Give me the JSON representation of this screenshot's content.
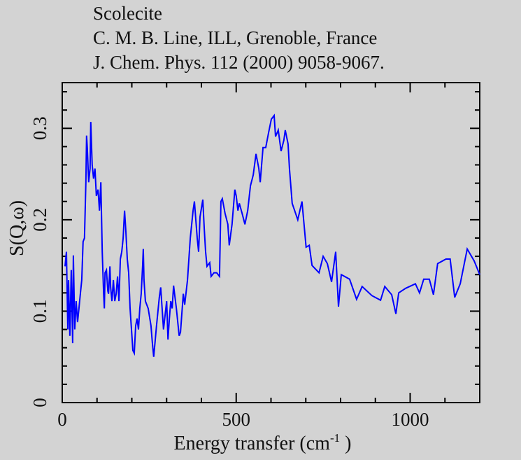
{
  "chart_data": {
    "type": "line",
    "title": [
      "Scolecite",
      "C. M. B. Line, ILL, Grenoble, France",
      "J. Chem. Phys. 112 (2000) 9058-9067."
    ],
    "xlabel": "Energy transfer (cm",
    "xlabel_sup": "-1",
    "xlabel_end": " )",
    "ylabel": "S(Q,ω)",
    "xlim": [
      0,
      1200
    ],
    "ylim": [
      0,
      0.35
    ],
    "xticks": [
      0,
      500,
      1000
    ],
    "xtick_labels": [
      "0",
      "500",
      "1000"
    ],
    "yticks": [
      0,
      0.1,
      0.2,
      0.3
    ],
    "ytick_labels": [
      "0",
      "0.1",
      "0.2",
      "0.3"
    ],
    "grid": false,
    "series": [
      {
        "name": "Scolecite",
        "color": "#0000ff",
        "x": [
          8,
          12,
          16,
          18,
          22,
          26,
          30,
          32,
          36,
          40,
          44,
          48,
          52,
          56,
          60,
          64,
          68,
          70,
          72,
          76,
          80,
          82,
          86,
          90,
          94,
          98,
          103,
          107,
          111,
          115,
          119,
          121,
          123,
          127,
          131,
          133,
          137,
          139,
          143,
          147,
          151,
          155,
          159,
          163,
          167,
          171,
          175,
          179,
          183,
          187,
          191,
          195,
          199,
          203,
          207,
          211,
          215,
          219,
          223,
          227,
          231,
          233,
          235,
          239,
          247,
          255,
          259,
          263,
          271,
          279,
          283,
          291,
          300,
          304,
          308,
          312,
          316,
          320,
          328,
          336,
          340,
          348,
          352,
          360,
          368,
          376,
          380,
          388,
          392,
          396,
          404,
          408,
          412,
          416,
          424,
          428,
          436,
          444,
          452,
          456,
          460,
          468,
          476,
          480,
          488,
          496,
          500,
          505,
          509,
          517,
          525,
          533,
          541,
          549,
          557,
          565,
          569,
          577,
          585,
          593,
          601,
          609,
          613,
          621,
          629,
          637,
          641,
          649,
          653,
          661,
          677,
          689,
          701,
          710,
          718,
          738,
          750,
          762,
          774,
          786,
          794,
          802,
          826,
          846,
          862,
          890,
          915,
          927,
          947,
          959,
          967,
          987,
          1015,
          1027,
          1039,
          1055,
          1067,
          1079,
          1103,
          1115,
          1128,
          1144,
          1164,
          1184,
          1200
        ],
        "y": [
          0.149,
          0.165,
          0.08,
          0.134,
          0.073,
          0.145,
          0.065,
          0.161,
          0.08,
          0.111,
          0.088,
          0.103,
          0.119,
          0.134,
          0.176,
          0.18,
          0.241,
          0.292,
          0.279,
          0.241,
          0.256,
          0.307,
          0.26,
          0.245,
          0.256,
          0.226,
          0.233,
          0.21,
          0.241,
          0.165,
          0.119,
          0.103,
          0.142,
          0.145,
          0.122,
          0.119,
          0.149,
          0.126,
          0.111,
          0.134,
          0.111,
          0.119,
          0.138,
          0.111,
          0.157,
          0.165,
          0.18,
          0.21,
          0.187,
          0.157,
          0.142,
          0.103,
          0.08,
          0.057,
          0.054,
          0.084,
          0.092,
          0.08,
          0.103,
          0.119,
          0.149,
          0.168,
          0.134,
          0.111,
          0.103,
          0.084,
          0.065,
          0.05,
          0.084,
          0.115,
          0.126,
          0.08,
          0.111,
          0.069,
          0.092,
          0.111,
          0.103,
          0.128,
          0.103,
          0.073,
          0.077,
          0.119,
          0.107,
          0.134,
          0.18,
          0.21,
          0.22,
          0.18,
          0.165,
          0.203,
          0.222,
          0.191,
          0.165,
          0.149,
          0.153,
          0.138,
          0.142,
          0.142,
          0.138,
          0.22,
          0.223,
          0.207,
          0.195,
          0.172,
          0.195,
          0.233,
          0.226,
          0.21,
          0.218,
          0.207,
          0.195,
          0.21,
          0.237,
          0.249,
          0.272,
          0.256,
          0.241,
          0.279,
          0.279,
          0.295,
          0.31,
          0.314,
          0.291,
          0.298,
          0.275,
          0.287,
          0.298,
          0.283,
          0.256,
          0.218,
          0.2,
          0.22,
          0.17,
          0.172,
          0.15,
          0.142,
          0.16,
          0.152,
          0.132,
          0.165,
          0.105,
          0.14,
          0.135,
          0.113,
          0.127,
          0.117,
          0.112,
          0.127,
          0.118,
          0.097,
          0.12,
          0.125,
          0.13,
          0.12,
          0.135,
          0.135,
          0.118,
          0.152,
          0.157,
          0.157,
          0.115,
          0.13,
          0.168,
          0.155,
          0.14
        ]
      }
    ]
  }
}
